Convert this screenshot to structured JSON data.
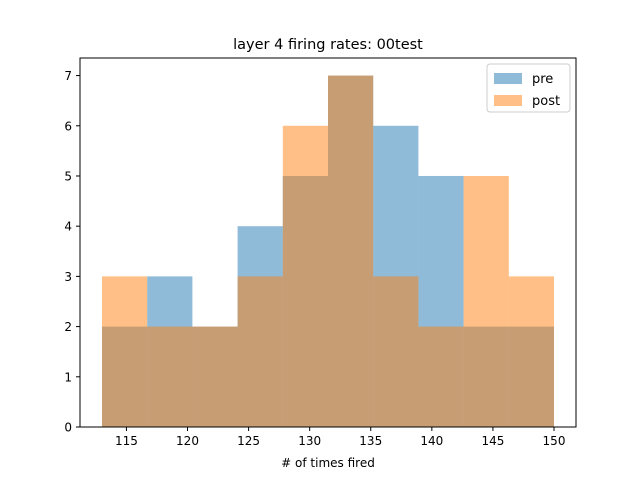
{
  "chart_data": {
    "type": "bar",
    "subtype": "overlapping-histogram",
    "title": "layer 4 firing rates: 00test",
    "xlabel": "# of times fired",
    "ylabel": "",
    "xlim": [
      111.2,
      151.8
    ],
    "ylim": [
      0,
      7.35
    ],
    "xticks": [
      115,
      120,
      125,
      130,
      135,
      140,
      145,
      150
    ],
    "yticks": [
      0,
      1,
      2,
      3,
      4,
      5,
      6,
      7
    ],
    "legend_position": "top-right",
    "series": [
      {
        "name": "pre",
        "color": "#1f77b4",
        "opacity": 0.5,
        "bin_edges": [
          113.0,
          116.7,
          120.4,
          124.1,
          127.8,
          131.5,
          135.2,
          138.9,
          142.6,
          146.3,
          150.0
        ],
        "counts": [
          2,
          3,
          2,
          4,
          5,
          7,
          6,
          5,
          2,
          2
        ]
      },
      {
        "name": "post",
        "color": "#ff7f0e",
        "opacity": 0.5,
        "bin_edges": [
          113.0,
          116.7,
          120.4,
          124.1,
          127.8,
          131.5,
          135.2,
          138.9,
          142.6,
          146.3,
          150.0
        ],
        "counts": [
          3,
          2,
          2,
          3,
          6,
          7,
          3,
          2,
          5,
          3
        ]
      }
    ]
  }
}
